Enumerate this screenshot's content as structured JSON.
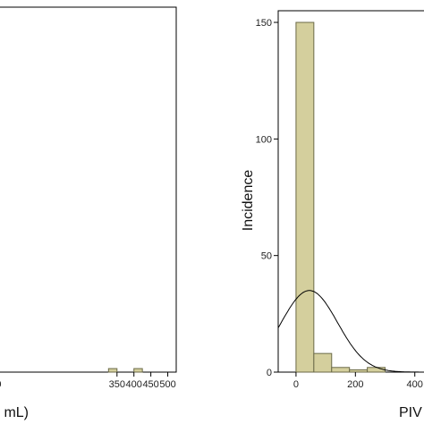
{
  "chart_data": [
    {
      "type": "bar",
      "title": "",
      "xlabel": "mL)",
      "ylabel": "",
      "xlim": [
        -1,
        525
      ],
      "ylim": [
        0,
        155
      ],
      "x_ticks": [
        "0",
        "350",
        "400",
        "450",
        "500"
      ],
      "x_tick_values": [
        0,
        350,
        400,
        450,
        500
      ],
      "bins": [
        {
          "x0": 325,
          "x1": 350,
          "value": 1.5
        },
        {
          "x0": 400,
          "x1": 425,
          "value": 1.5
        }
      ],
      "grid": false,
      "colors": {
        "bar_fill": "#d4cf9d",
        "bar_stroke": "#6b6a48"
      }
    },
    {
      "type": "bar",
      "title": "",
      "xlabel": "PIV",
      "ylabel": "Incidence",
      "xlim": [
        -60,
        440
      ],
      "ylim": [
        0,
        155
      ],
      "x_ticks": [
        "0",
        "200",
        "400"
      ],
      "x_tick_values": [
        0,
        200,
        400
      ],
      "y_ticks": [
        "0",
        "50",
        "100",
        "150"
      ],
      "y_tick_values": [
        0,
        50,
        100,
        150
      ],
      "bins": [
        {
          "x0": 0,
          "x1": 60,
          "value": 150
        },
        {
          "x0": 60,
          "x1": 120,
          "value": 8
        },
        {
          "x0": 120,
          "x1": 180,
          "value": 2
        },
        {
          "x0": 180,
          "x1": 240,
          "value": 1
        },
        {
          "x0": 240,
          "x1": 300,
          "value": 2
        }
      ],
      "normal_curve": {
        "mean": 45,
        "sd": 95,
        "peak": 35
      },
      "grid": false,
      "colors": {
        "bar_fill": "#d4cf9d",
        "bar_stroke": "#6b6a48"
      }
    }
  ]
}
